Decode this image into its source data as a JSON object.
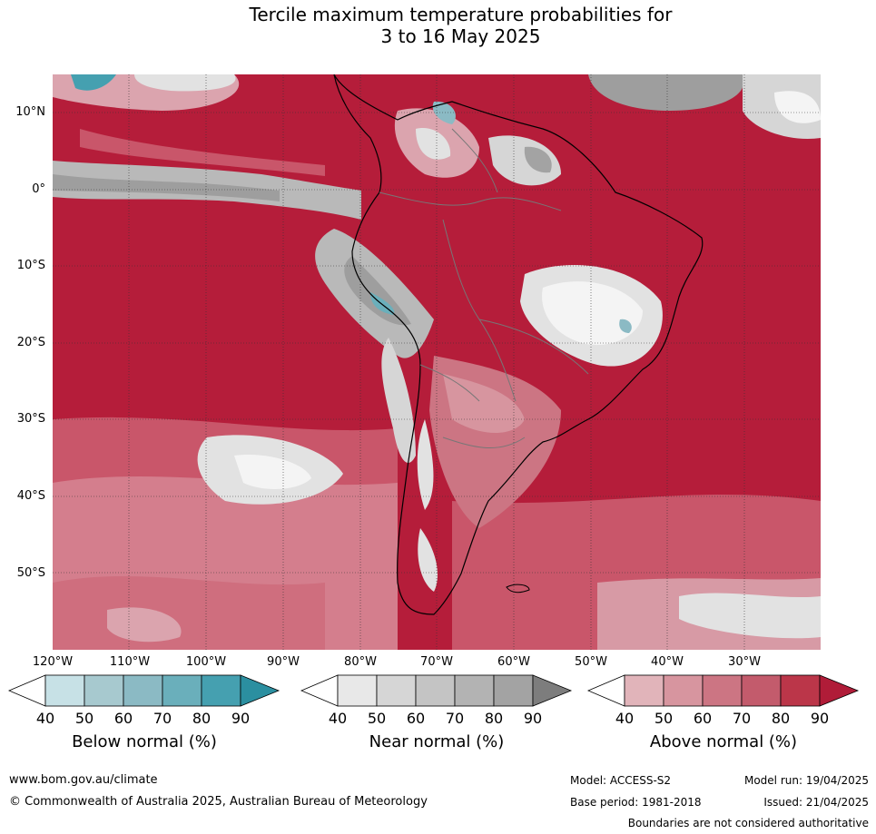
{
  "title_line1": "Tercile maximum temperature probabilities for",
  "title_line2": "3 to 16 May 2025",
  "latitudes": [
    "10°N",
    "0°",
    "10°S",
    "20°S",
    "30°S",
    "40°S",
    "50°S"
  ],
  "longitudes": [
    "120°W",
    "110°W",
    "100°W",
    "90°W",
    "80°W",
    "70°W",
    "60°W",
    "50°W",
    "40°W",
    "30°W"
  ],
  "colorbars": [
    {
      "label": "Below normal (%)",
      "ticks": [
        "40",
        "50",
        "60",
        "70",
        "80",
        "90"
      ],
      "colors": [
        "#c7e1e6",
        "#a7c9cf",
        "#8bbac4",
        "#6aafbb",
        "#45a0b0",
        "#2b8fa0"
      ]
    },
    {
      "label": "Near normal (%)",
      "ticks": [
        "40",
        "50",
        "60",
        "70",
        "80",
        "90"
      ],
      "colors": [
        "#e8e8e8",
        "#d6d6d6",
        "#c4c4c4",
        "#b3b3b3",
        "#a3a3a3",
        "#7d7d7d"
      ]
    },
    {
      "label": "Above normal (%)",
      "ticks": [
        "40",
        "50",
        "60",
        "70",
        "80",
        "90"
      ],
      "colors": [
        "#e1b4ba",
        "#d7959f",
        "#cc7583",
        "#c35b6c",
        "#bb3649",
        "#b01c38"
      ]
    }
  ],
  "footer": {
    "website": "www.bom.gov.au/climate",
    "copyright": "© Commonwealth of Australia 2025, Australian Bureau of Meteorology",
    "model": "Model: ACCESS-S2",
    "base_period": "Base period: 1981-2018",
    "model_run": "Model run: 19/04/2025",
    "issued": "Issued: 21/04/2025",
    "disclaimer": "Boundaries are not considered authoritative"
  },
  "colors": {
    "above_dark": "#b51d3a",
    "above_mid": "#c9566a",
    "above_light": "#dba4ae",
    "near_light": "#e2e2e2",
    "near_dark": "#9e9e9e",
    "below": "#69adb9"
  }
}
